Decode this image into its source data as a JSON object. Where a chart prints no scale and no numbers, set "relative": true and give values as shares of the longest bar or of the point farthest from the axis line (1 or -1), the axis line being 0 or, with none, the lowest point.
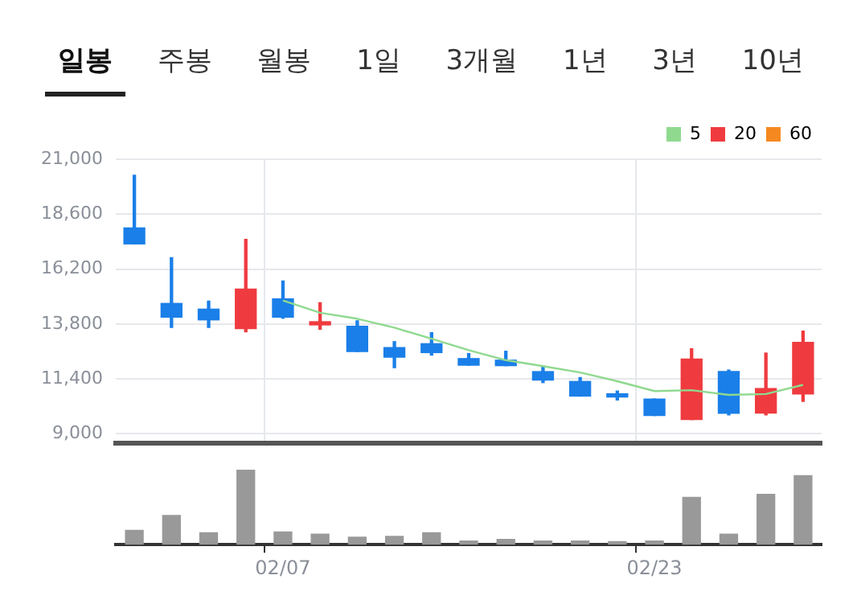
{
  "chart_data": [
    {
      "type": "candlestick",
      "annotations": [
        "일봉",
        "주봉",
        "월봉",
        "1일",
        "3개월",
        "1년",
        "3년",
        "10년"
      ],
      "categories": [
        null,
        null,
        null,
        null,
        null,
        null,
        null,
        null,
        null,
        null,
        null,
        null,
        null,
        null,
        null,
        null,
        null,
        null,
        null
      ],
      "ohlc": [
        [
          18000,
          20300,
          17300,
          17300
        ],
        [
          14700,
          16700,
          13650,
          14100
        ],
        [
          14450,
          14800,
          13650,
          13980
        ],
        [
          13600,
          17500,
          13460,
          15330
        ],
        [
          14900,
          15680,
          14050,
          14100
        ],
        [
          13760,
          14730,
          13570,
          13840
        ],
        [
          13700,
          13940,
          12600,
          12600
        ],
        [
          12770,
          13030,
          11890,
          12350
        ],
        [
          12940,
          13420,
          12440,
          12550
        ],
        [
          12290,
          12510,
          12000,
          12000
        ],
        [
          12220,
          12610,
          11980,
          11980
        ],
        [
          11720,
          11940,
          11240,
          11350
        ],
        [
          11290,
          11460,
          10650,
          10650
        ],
        [
          10690,
          10870,
          10480,
          10610
        ],
        [
          10520,
          10520,
          9800,
          9800
        ],
        [
          9630,
          12720,
          9630,
          12270
        ],
        [
          11720,
          11790,
          9830,
          9900
        ],
        [
          9910,
          12530,
          9830,
          10980
        ],
        [
          10740,
          13490,
          10420,
          13000
        ]
      ],
      "colors": [
        "#1a7fe8",
        "#1a7fe8",
        "#1a7fe8",
        "#ef3b3f",
        "#1a7fe8",
        "#ef3b3f",
        "#1a7fe8",
        "#1a7fe8",
        "#1a7fe8",
        "#1a7fe8",
        "#1a7fe8",
        "#1a7fe8",
        "#1a7fe8",
        "#1a7fe8",
        "#1a7fe8",
        "#ef3b3f",
        "#1a7fe8",
        "#ef3b3f",
        "#ef3b3f"
      ],
      "series": [
        {
          "type": "line",
          "name": "5",
          "color": "#8fd98f",
          "values": [
            null,
            null,
            null,
            null,
            14830,
            14290,
            14030,
            13640,
            13160,
            12660,
            12220,
            11960,
            11680,
            11300,
            10870,
            10910,
            10700,
            10740,
            11140
          ]
        },
        {
          "type": "line",
          "name": "20",
          "color": "#ef3b3f",
          "values": [
            null,
            null,
            null,
            null,
            null,
            null,
            null,
            null,
            null,
            null,
            null,
            null,
            null,
            null,
            null,
            null,
            null,
            null,
            null
          ]
        },
        {
          "type": "line",
          "name": "60",
          "color": "#f5891f",
          "values": [
            null,
            null,
            null,
            null,
            null,
            null,
            null,
            null,
            null,
            null,
            null,
            null,
            null,
            null,
            null,
            null,
            null,
            null,
            null
          ]
        }
      ],
      "ylim": [
        8600,
        21000
      ],
      "yticks": [
        {
          "value": 9000,
          "label": "9,000"
        },
        {
          "value": 11400,
          "label": "11,400"
        },
        {
          "value": 13800,
          "label": "13,800"
        },
        {
          "value": 16200,
          "label": "16,200"
        },
        {
          "value": 18600,
          "label": "18,600"
        },
        {
          "value": 21000,
          "label": "21,000"
        }
      ],
      "grid": true,
      "legend": "top right",
      "tick_labels": "y",
      "marker": "none"
    },
    {
      "type": "bar",
      "categories": [
        null,
        null,
        null,
        null,
        "02/07",
        null,
        null,
        null,
        null,
        null,
        null,
        null,
        null,
        null,
        "02/23",
        null,
        null,
        null,
        null
      ],
      "values": [
        0.19,
        0.39,
        0.16,
        1,
        0.17,
        0.14,
        0.1,
        0.11,
        0.16,
        0.05,
        0.07,
        0.05,
        0.05,
        0.04,
        0.05,
        0.63,
        0.14,
        0.67,
        0.92
      ],
      "color": "#999999",
      "relative": true,
      "grid": false
    }
  ]
}
